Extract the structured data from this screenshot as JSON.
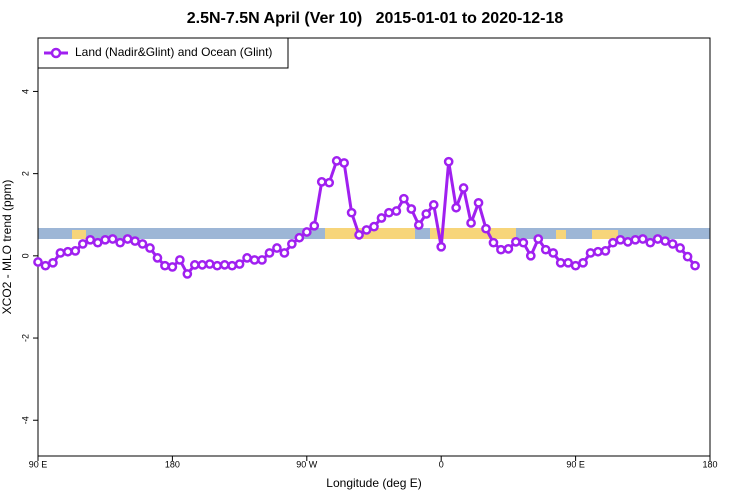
{
  "chart_data": {
    "type": "line",
    "title": "2.5N-7.5N April (Ver 10)   2015-01-01 to 2020-12-18",
    "x_label": "Longitude (deg E)",
    "y_label": "XCO2 - MLO trend (ppm)",
    "xlim": [
      90,
      540
    ],
    "ylim": [
      -4.87,
      5.3
    ],
    "xticks": [
      {
        "value": 90,
        "label": "90 E"
      },
      180,
      {
        "value": 270,
        "label": "90 W"
      },
      {
        "value": 360,
        "label": "0"
      },
      {
        "value": 450,
        "label": "90 E"
      },
      {
        "value": 540,
        "label": "180"
      }
    ],
    "yticks": [
      -4,
      -2,
      0,
      2,
      4
    ],
    "legend": "top-left",
    "x": [
      90,
      95,
      100,
      105,
      110,
      115,
      120,
      125,
      130,
      135,
      140,
      145,
      150,
      155,
      160,
      165,
      170,
      175,
      180,
      185,
      190,
      195,
      200,
      205,
      210,
      215,
      220,
      225,
      230,
      235,
      240,
      245,
      250,
      255,
      260,
      265,
      270,
      275,
      280,
      285,
      290,
      295,
      300,
      305,
      310,
      315,
      320,
      325,
      330,
      335,
      340,
      345,
      350,
      355,
      360,
      365,
      370,
      375,
      380,
      385,
      390,
      395,
      400,
      405,
      410,
      415,
      420,
      425,
      430,
      435,
      440,
      445,
      450,
      455,
      460,
      465,
      470,
      475,
      480,
      485,
      490,
      495,
      500,
      505,
      510,
      515,
      520,
      525,
      530
    ],
    "series": [
      {
        "name": "Land (Nadir&Glint) and Ocean (Glint)",
        "color": "#a020f0",
        "values": [
          -0.15,
          -0.24,
          -0.17,
          0.07,
          0.1,
          0.12,
          0.29,
          0.39,
          0.32,
          0.39,
          0.41,
          0.32,
          0.41,
          0.36,
          0.29,
          0.19,
          -0.05,
          -0.24,
          -0.27,
          -0.1,
          -0.44,
          -0.22,
          -0.22,
          -0.2,
          -0.24,
          -0.22,
          -0.24,
          -0.2,
          -0.05,
          -0.1,
          -0.1,
          0.07,
          0.19,
          0.07,
          0.29,
          0.44,
          0.58,
          0.73,
          1.8,
          1.78,
          2.31,
          2.26,
          1.05,
          0.51,
          0.63,
          0.71,
          0.92,
          1.05,
          1.09,
          1.39,
          1.14,
          0.75,
          1.02,
          1.24,
          0.22,
          2.29,
          1.17,
          1.65,
          0.8,
          1.29,
          0.66,
          0.32,
          0.15,
          0.17,
          0.34,
          0.32,
          0.0,
          0.41,
          0.15,
          0.07,
          -0.17,
          -0.17,
          -0.24,
          -0.17,
          0.07,
          0.1,
          0.12,
          0.32,
          0.39,
          0.34,
          0.39,
          0.41,
          0.32,
          0.41,
          0.36,
          0.29,
          0.19,
          -0.02,
          -0.24
        ]
      }
    ]
  }
}
